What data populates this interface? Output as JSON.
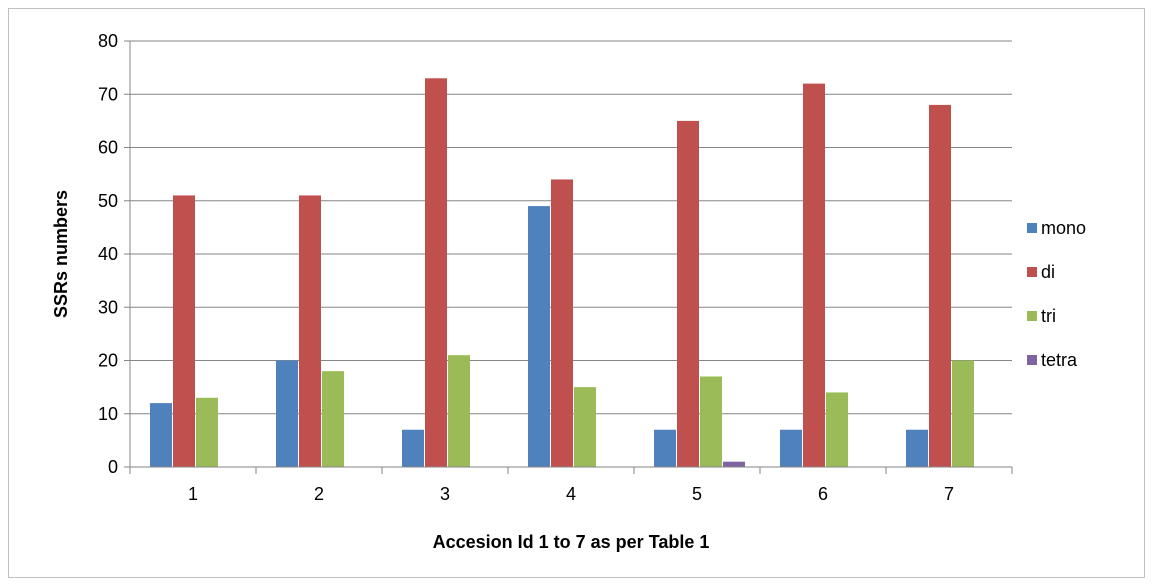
{
  "chart_data": {
    "type": "bar",
    "title": "",
    "xlabel": "Accesion Id 1 to 7 as per Table 1",
    "ylabel": "SSRs numbers",
    "categories": [
      "1",
      "2",
      "3",
      "4",
      "5",
      "6",
      "7"
    ],
    "ylim": [
      0,
      80
    ],
    "yticks": [
      "0",
      "10",
      "20",
      "30",
      "40",
      "50",
      "60",
      "70",
      "80"
    ],
    "grid": true,
    "legend_position": "right",
    "series": [
      {
        "name": "mono",
        "color": "#4f81bd",
        "values": [
          12,
          20,
          7,
          49,
          7,
          7,
          7
        ]
      },
      {
        "name": "di",
        "color": "#c0504d",
        "values": [
          51,
          51,
          73,
          54,
          65,
          72,
          68
        ]
      },
      {
        "name": "tri",
        "color": "#9bbb59",
        "values": [
          13,
          18,
          21,
          15,
          17,
          14,
          20
        ]
      },
      {
        "name": "tetra",
        "color": "#8064a2",
        "values": [
          0,
          0,
          0,
          0,
          1,
          0,
          0
        ]
      }
    ]
  }
}
